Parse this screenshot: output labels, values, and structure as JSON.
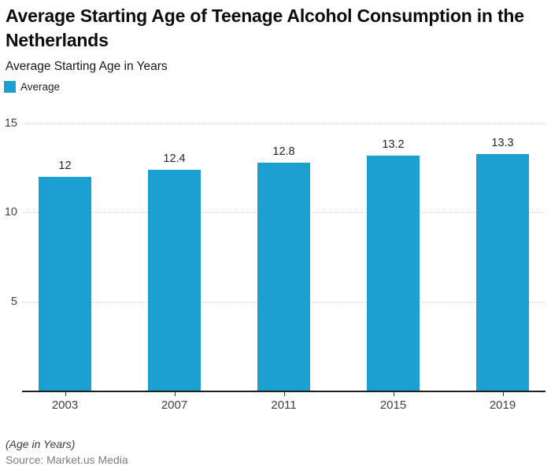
{
  "header": {
    "title": "Average Starting Age of Teenage Alcohol Consumption in the Netherlands",
    "subtitle": "Average Starting Age in Years"
  },
  "legend": {
    "label": "Average"
  },
  "chart_data": {
    "type": "bar",
    "title": "Average Starting Age of Teenage Alcohol Consumption in the Netherlands",
    "subtitle": "Average Starting Age in Years",
    "categories": [
      "2003",
      "2007",
      "2011",
      "2015",
      "2019"
    ],
    "series": [
      {
        "name": "Average",
        "values": [
          12,
          12.4,
          12.8,
          13.2,
          13.3
        ]
      }
    ],
    "data_labels": [
      "12",
      "12.4",
      "12.8",
      "13.2",
      "13.3"
    ],
    "xlabel": "",
    "ylabel": "",
    "ylim": [
      0,
      15
    ],
    "yticks": [
      5,
      10,
      15
    ],
    "grid": true,
    "legend_position": "top-left"
  },
  "footer": {
    "note": "(Age in Years)",
    "source": "Source: Market.us Media"
  },
  "colors": {
    "bar": "#1B9FD0",
    "grid": "#CDCDCD",
    "axis": "#1F1F1F",
    "tick": "#333333",
    "title": "#0D0D0D",
    "value_label": "#252525",
    "source": "#7D7D7D"
  }
}
